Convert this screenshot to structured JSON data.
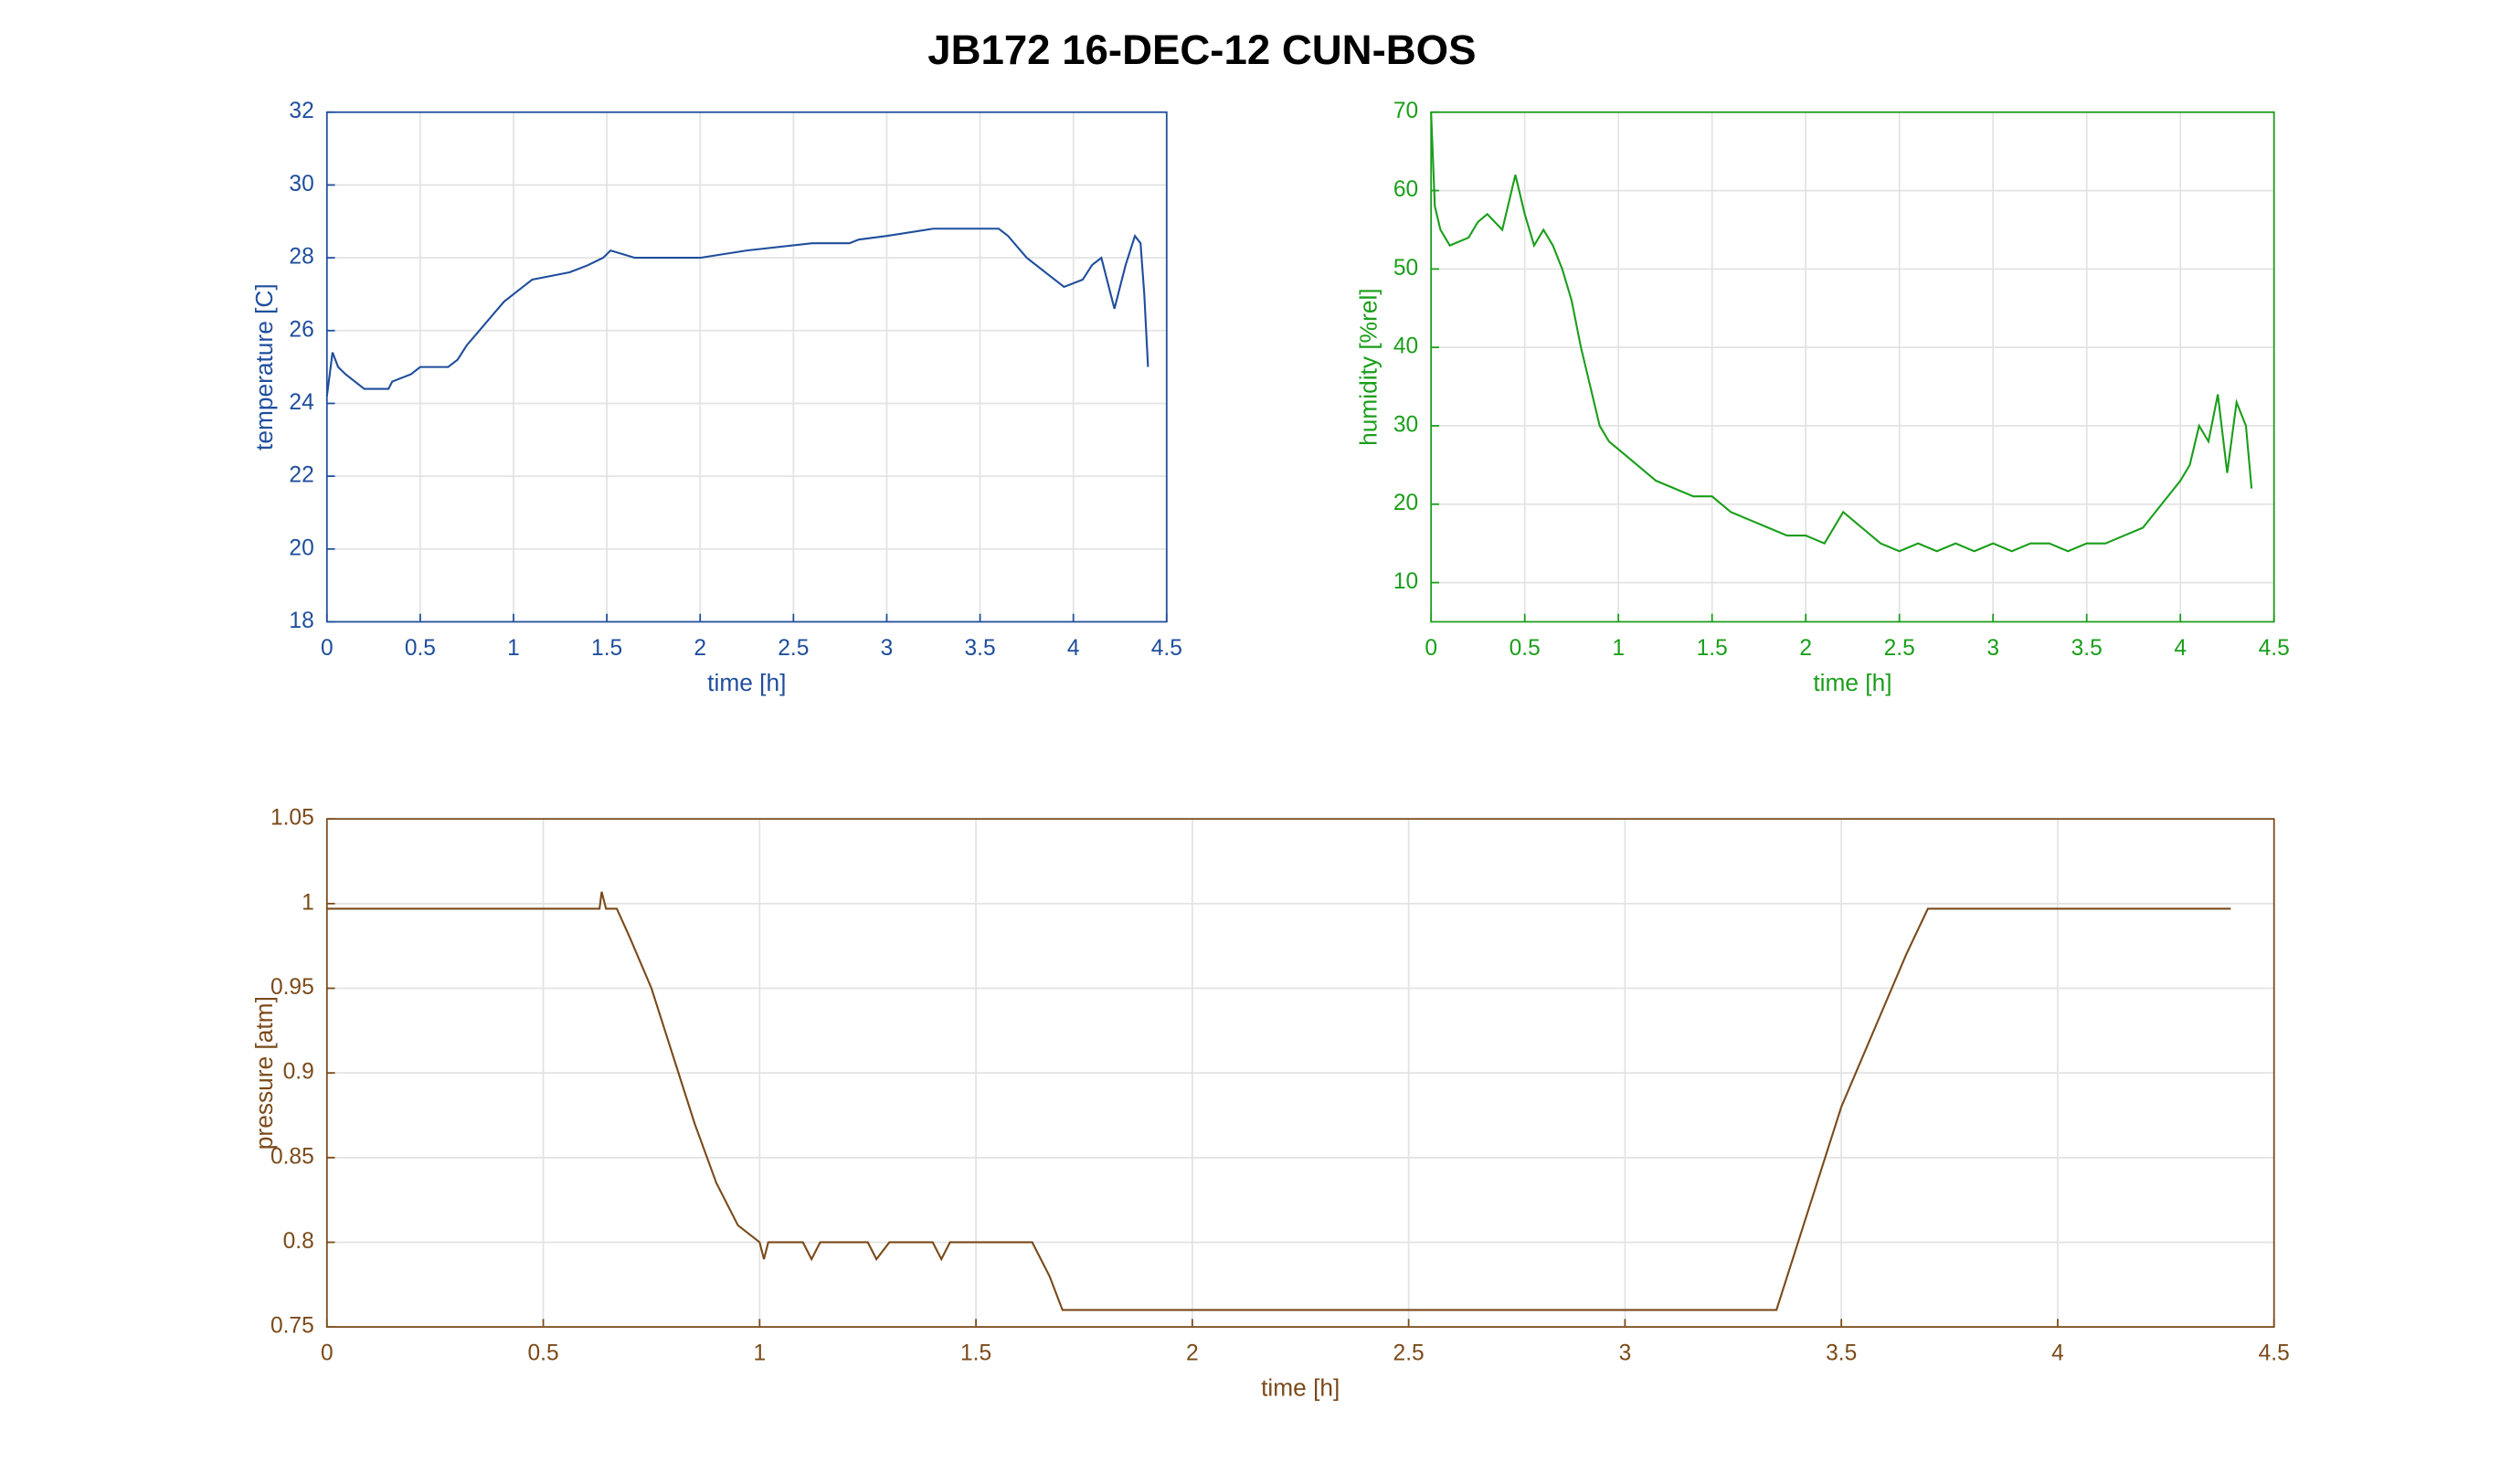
{
  "title": "JB172 16-DEC-12 CUN-BOS",
  "chart_data": [
    {
      "type": "line",
      "xlabel": "time [h]",
      "ylabel": "temperature [C]",
      "color": "#1f4e9c",
      "grid": true,
      "xlim": [
        0,
        4.5
      ],
      "ylim": [
        18,
        32
      ],
      "xticks": [
        0,
        0.5,
        1,
        1.5,
        2,
        2.5,
        3,
        3.5,
        4,
        4.5
      ],
      "yticks": [
        18,
        20,
        22,
        24,
        26,
        28,
        30,
        32
      ],
      "x": [
        0,
        0.02,
        0.03,
        0.06,
        0.1,
        0.15,
        0.2,
        0.33,
        0.35,
        0.45,
        0.5,
        0.65,
        0.7,
        0.75,
        0.8,
        0.85,
        0.9,
        0.95,
        1.0,
        1.05,
        1.1,
        1.2,
        1.3,
        1.4,
        1.48,
        1.52,
        1.65,
        2.0,
        2.25,
        2.6,
        2.8,
        2.85,
        3.0,
        3.25,
        3.6,
        3.65,
        3.75,
        3.85,
        3.95,
        4.05,
        4.1,
        4.15,
        4.2,
        4.22,
        4.28,
        4.33,
        4.36,
        4.38,
        4.4
      ],
      "values": [
        24.2,
        25,
        25.4,
        25,
        24.8,
        24.6,
        24.4,
        24.4,
        24.6,
        24.8,
        25,
        25,
        25.2,
        25.6,
        25.9,
        26.2,
        26.5,
        26.8,
        27.0,
        27.2,
        27.4,
        27.5,
        27.6,
        27.8,
        28.0,
        28.2,
        28.0,
        28.0,
        28.2,
        28.4,
        28.4,
        28.5,
        28.6,
        28.8,
        28.8,
        28.6,
        28.0,
        27.6,
        27.2,
        27.4,
        27.8,
        28.0,
        27.0,
        26.6,
        27.8,
        28.6,
        28.4,
        27.0,
        25.0
      ]
    },
    {
      "type": "line",
      "xlabel": "time [h]",
      "ylabel": "humidity [%rel]",
      "color": "#1a9e1a",
      "grid": true,
      "xlim": [
        0,
        4.5
      ],
      "ylim": [
        5,
        70
      ],
      "xticks": [
        0,
        0.5,
        1,
        1.5,
        2,
        2.5,
        3,
        3.5,
        4,
        4.5
      ],
      "yticks": [
        10,
        20,
        30,
        40,
        50,
        60,
        70
      ],
      "x": [
        0,
        0.02,
        0.05,
        0.1,
        0.2,
        0.25,
        0.3,
        0.38,
        0.45,
        0.5,
        0.55,
        0.6,
        0.65,
        0.7,
        0.75,
        0.8,
        0.85,
        0.9,
        0.95,
        1.0,
        1.1,
        1.2,
        1.3,
        1.4,
        1.5,
        1.6,
        1.7,
        1.8,
        1.9,
        2.0,
        2.1,
        2.2,
        2.3,
        2.4,
        2.5,
        2.6,
        2.7,
        2.8,
        2.9,
        3.0,
        3.1,
        3.2,
        3.3,
        3.4,
        3.5,
        3.6,
        3.7,
        3.8,
        3.9,
        4.0,
        4.05,
        4.1,
        4.15,
        4.2,
        4.25,
        4.3,
        4.35,
        4.38
      ],
      "values": [
        70,
        58,
        55,
        53,
        54,
        56,
        57,
        55,
        62,
        57,
        53,
        55,
        53,
        50,
        46,
        40,
        35,
        30,
        28,
        27,
        25,
        23,
        22,
        21,
        21,
        19,
        18,
        17,
        16,
        16,
        15,
        19,
        17,
        15,
        14,
        15,
        14,
        15,
        14,
        15,
        14,
        15,
        15,
        14,
        15,
        15,
        16,
        17,
        20,
        23,
        25,
        30,
        28,
        34,
        24,
        33,
        30,
        22
      ]
    },
    {
      "type": "line",
      "xlabel": "time [h]",
      "ylabel": "pressure [atm]",
      "color": "#7a4a1a",
      "grid": true,
      "xlim": [
        0,
        4.5
      ],
      "ylim": [
        0.75,
        1.05
      ],
      "xticks": [
        0,
        0.5,
        1,
        1.5,
        2,
        2.5,
        3,
        3.5,
        4,
        4.5
      ],
      "yticks": [
        0.75,
        0.8,
        0.85,
        0.9,
        0.95,
        1,
        1.05
      ],
      "x": [
        0,
        0.63,
        0.635,
        0.645,
        0.67,
        0.7,
        0.75,
        0.8,
        0.85,
        0.9,
        0.95,
        1.0,
        1.01,
        1.02,
        1.1,
        1.12,
        1.14,
        1.25,
        1.27,
        1.3,
        1.4,
        1.42,
        1.44,
        1.63,
        1.67,
        1.7,
        3.35,
        3.4,
        3.45,
        3.5,
        3.55,
        3.6,
        3.65,
        3.7,
        4.4
      ],
      "values": [
        0.997,
        0.997,
        1.007,
        0.997,
        0.997,
        0.98,
        0.95,
        0.91,
        0.87,
        0.835,
        0.81,
        0.8,
        0.79,
        0.8,
        0.8,
        0.79,
        0.8,
        0.8,
        0.79,
        0.8,
        0.8,
        0.79,
        0.8,
        0.8,
        0.78,
        0.76,
        0.76,
        0.8,
        0.84,
        0.88,
        0.91,
        0.94,
        0.97,
        0.997,
        0.997
      ]
    }
  ]
}
